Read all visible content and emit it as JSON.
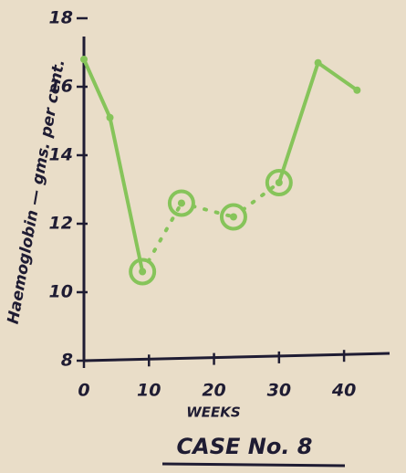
{
  "chart_data": {
    "type": "line",
    "title": "CASE No. 8",
    "x_label": "WEEKS",
    "y_label": "Haemoglobin — gms. per cent.",
    "x": [
      0,
      4,
      9,
      15,
      23,
      30,
      36,
      42
    ],
    "values": [
      16.8,
      15.1,
      10.6,
      12.6,
      12.2,
      13.2,
      16.7,
      15.9
    ],
    "circled": [
      false,
      false,
      true,
      true,
      true,
      true,
      false,
      false
    ],
    "color": "#86c45a",
    "xlim": [
      0,
      47
    ],
    "xticks": [
      0,
      10,
      20,
      30,
      40
    ],
    "ylim": [
      8,
      18
    ],
    "yticks": [
      8,
      10,
      12,
      14,
      16,
      18
    ]
  }
}
